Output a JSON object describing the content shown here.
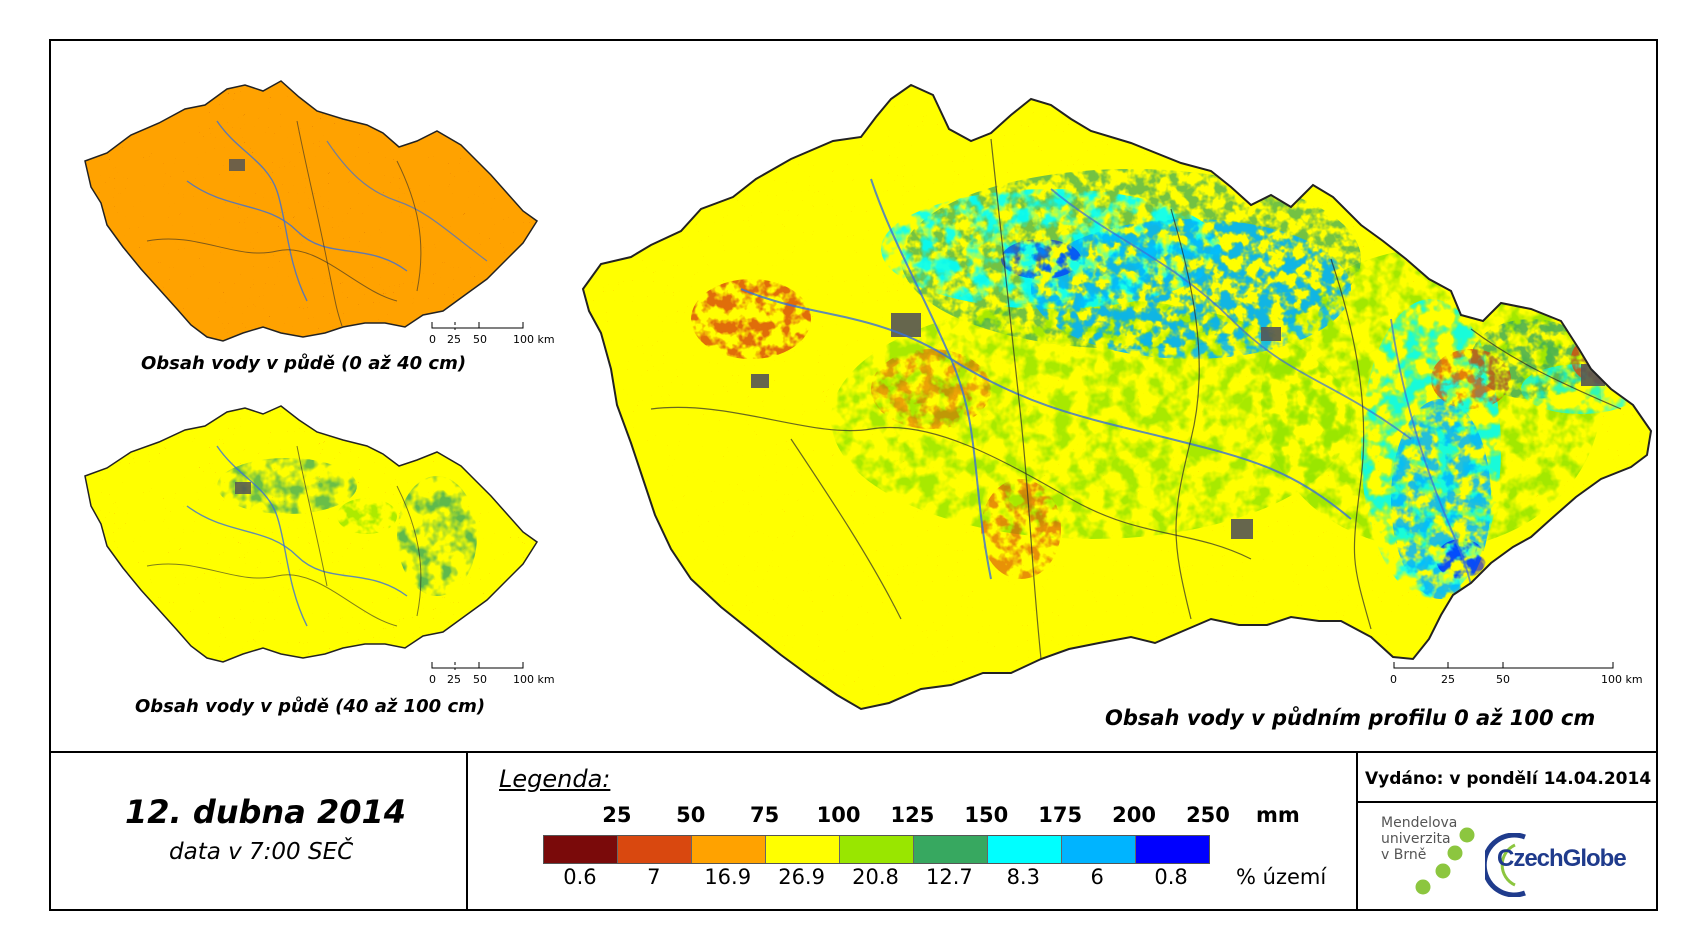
{
  "maps": {
    "small_top": {
      "title": "Obsah vody v půdě (0 až 40 cm)",
      "scale": [
        "0",
        "25",
        "50",
        "100 km"
      ]
    },
    "small_bottom": {
      "title": "Obsah vody v půdě (40 až 100 cm)",
      "scale": [
        "0",
        "25",
        "50",
        "100 km"
      ]
    },
    "main": {
      "title": "Obsah vody v půdním profilu 0 až 100 cm",
      "scale": [
        "0",
        "25",
        "50",
        "100 km"
      ]
    }
  },
  "date": {
    "title": "12. dubna 2014",
    "subtitle": "data v 7:00 SEČ"
  },
  "legend": {
    "title": "Legenda:",
    "thresholds": [
      "25",
      "50",
      "75",
      "100",
      "125",
      "150",
      "175",
      "200",
      "250"
    ],
    "unit": "mm",
    "classes": [
      {
        "color": "#7a0a0a",
        "percent": "0.6"
      },
      {
        "color": "#d9480f",
        "percent": "7"
      },
      {
        "color": "#ffa200",
        "percent": "16.9"
      },
      {
        "color": "#ffff00",
        "percent": "26.9"
      },
      {
        "color": "#99e600",
        "percent": "20.8"
      },
      {
        "color": "#37a860",
        "percent": "12.7"
      },
      {
        "color": "#00ffff",
        "percent": "8.3"
      },
      {
        "color": "#00b4ff",
        "percent": "6"
      },
      {
        "color": "#0000ff",
        "percent": "0.8"
      }
    ],
    "percent_label": "% území"
  },
  "issued": "Vydáno: v pondělí 14.04.2014",
  "logos": {
    "mendel_lines": [
      "Mendelova",
      "univerzita",
      "v Brně"
    ],
    "czechglobe": "CzechGlobe"
  },
  "colors": {
    "dry": "#7a0a0a",
    "orange": "#d9480f",
    "amber": "#ffa200",
    "yellow": "#ffff00",
    "lime": "#99e600",
    "green": "#37a860",
    "cyan": "#00ffff",
    "sky": "#00b4ff",
    "blue": "#0000ff",
    "urban": "#555555",
    "river": "#3a6fd8"
  }
}
